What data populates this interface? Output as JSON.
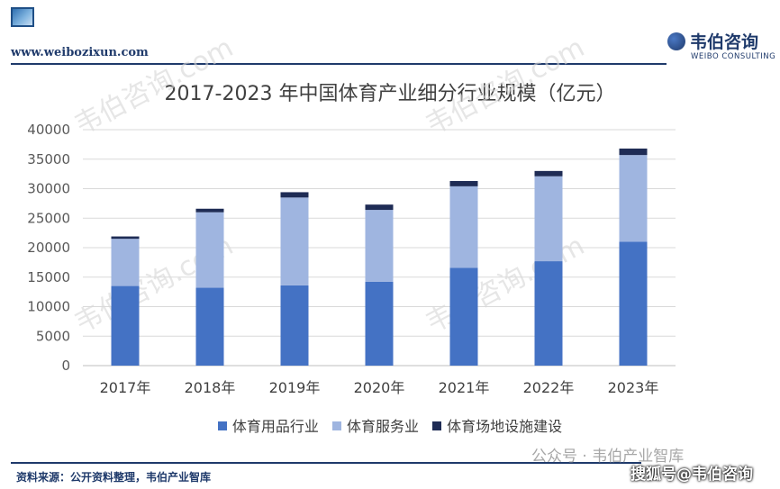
{
  "header": {
    "site_url": "www.weibozixun.com",
    "brand_name": "韦伯咨询",
    "brand_sub": "WEIBO CONSULTING"
  },
  "watermark": {
    "text": "韦伯咨询.com",
    "wechat": "公众号 · 韦伯产业智库",
    "sohu": "搜狐号@韦伯咨询"
  },
  "footer": {
    "source": "资料来源：公开资料整理，韦伯产业智库"
  },
  "chart_data": {
    "type": "bar",
    "stacked": true,
    "title": "2017-2023 年中国体育产业细分行业规模（亿元）",
    "xlabel": "",
    "ylabel": "",
    "categories": [
      "2017年",
      "2018年",
      "2019年",
      "2020年",
      "2021年",
      "2022年",
      "2023年"
    ],
    "ylim": [
      0,
      40000
    ],
    "yticks": [
      0,
      5000,
      10000,
      15000,
      20000,
      25000,
      30000,
      35000,
      40000
    ],
    "grid": true,
    "legend_position": "bottom",
    "series": [
      {
        "name": "体育用品行业",
        "color": "#4472c4",
        "values": [
          13500,
          13200,
          13600,
          14200,
          16600,
          17700,
          21000
        ]
      },
      {
        "name": "体育服务业",
        "color": "#9fb5e0",
        "values": [
          8000,
          12800,
          14900,
          12200,
          13800,
          14400,
          14700
        ]
      },
      {
        "name": "体育场地设施建设",
        "color": "#1f2c55",
        "values": [
          400,
          600,
          900,
          900,
          900,
          900,
          1100
        ]
      }
    ]
  }
}
